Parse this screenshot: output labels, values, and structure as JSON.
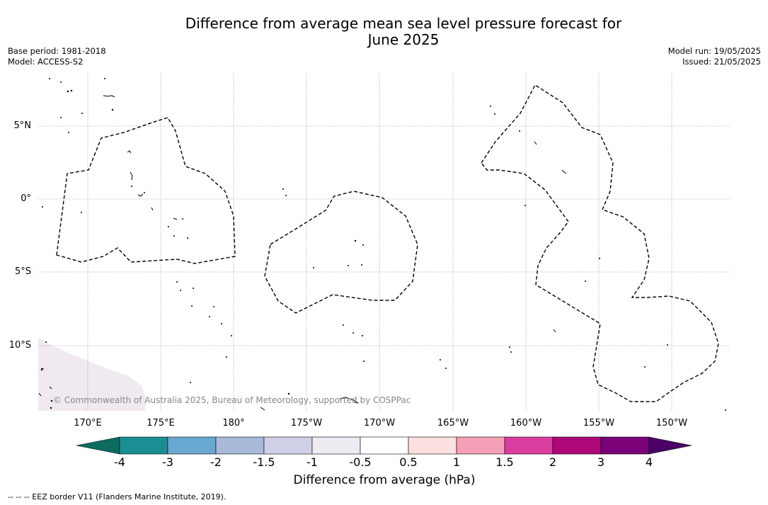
{
  "title_line1": "Difference from average mean sea level pressure forecast for",
  "title_line2": "June 2025",
  "base_period": "Base period: 1981-2018",
  "model": "Model: ACCESS-S2",
  "model_run": "Model run: 19/05/2025",
  "issued": "Issued: 21/05/2025",
  "lat_labels": [
    "5°N",
    "0°",
    "5°S",
    "10°S"
  ],
  "lon_labels": [
    "170°E",
    "175°E",
    "180°",
    "175°W",
    "170°W",
    "165°W",
    "160°W",
    "155°W",
    "150°W"
  ],
  "copyright": "© Commonwealth of Australia 2025, Bureau of Meteorology, supported by COSPPac",
  "colorbar": {
    "ticks": [
      "-4",
      "-3",
      "-2",
      "-1.5",
      "-1",
      "-0.5",
      "0.5",
      "1",
      "1.5",
      "2",
      "3",
      "4"
    ],
    "colors": [
      "#1b8e94",
      "#69a8d0",
      "#a9b9da",
      "#cfd0e6",
      "#eeebf3",
      "#ffffff",
      "#fde0e0",
      "#f6a0b7",
      "#d93d9e",
      "#ad0779",
      "#7a0177"
    ],
    "under_color": "#0d6b60",
    "over_color": "#4a0064",
    "label": "Difference from average (hPa)"
  },
  "footnote": "--  --  -- EEZ border V11 (Flanders Marine Institute, 2019).",
  "land_fill_color": "#f0e9f0"
}
